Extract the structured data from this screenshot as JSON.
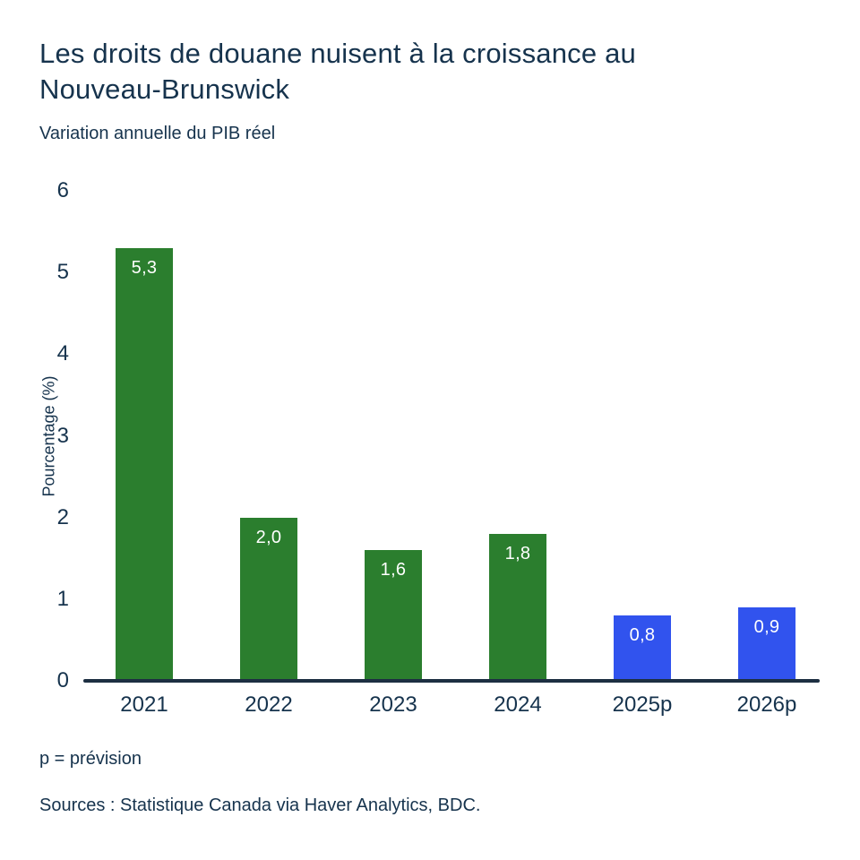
{
  "chart_data": {
    "type": "bar",
    "title": "Les droits de douane nuisent à la croissance au Nouveau-Brunswick",
    "subtitle": "Variation annuelle du PIB réel",
    "ylabel": "Pourcentage (%)",
    "xlabel": "",
    "ylim": [
      0,
      6
    ],
    "yticks": [
      0,
      1,
      2,
      3,
      4,
      5,
      6
    ],
    "grid": false,
    "legend": "none",
    "categories": [
      "2021",
      "2022",
      "2023",
      "2024",
      "2025p",
      "2026p"
    ],
    "values": [
      5.3,
      2.0,
      1.6,
      1.8,
      0.8,
      0.9
    ],
    "value_labels": [
      "5,3",
      "2,0",
      "1,6",
      "1,8",
      "0,8",
      "0,9"
    ],
    "bar_colors": [
      "#2b7e2e",
      "#2b7e2e",
      "#2b7e2e",
      "#2b7e2e",
      "#3153ee",
      "#3153ee"
    ]
  },
  "footer": {
    "note": "p = prévision",
    "sources": "Sources : Statistique Canada via Haver Analytics, BDC."
  },
  "colors": {
    "text": "#16334d",
    "axis_line": "#1d2f42",
    "actual_bar": "#2b7e2e",
    "forecast_bar": "#3153ee",
    "value_label_text": "#ffffff",
    "background": "#ffffff"
  }
}
